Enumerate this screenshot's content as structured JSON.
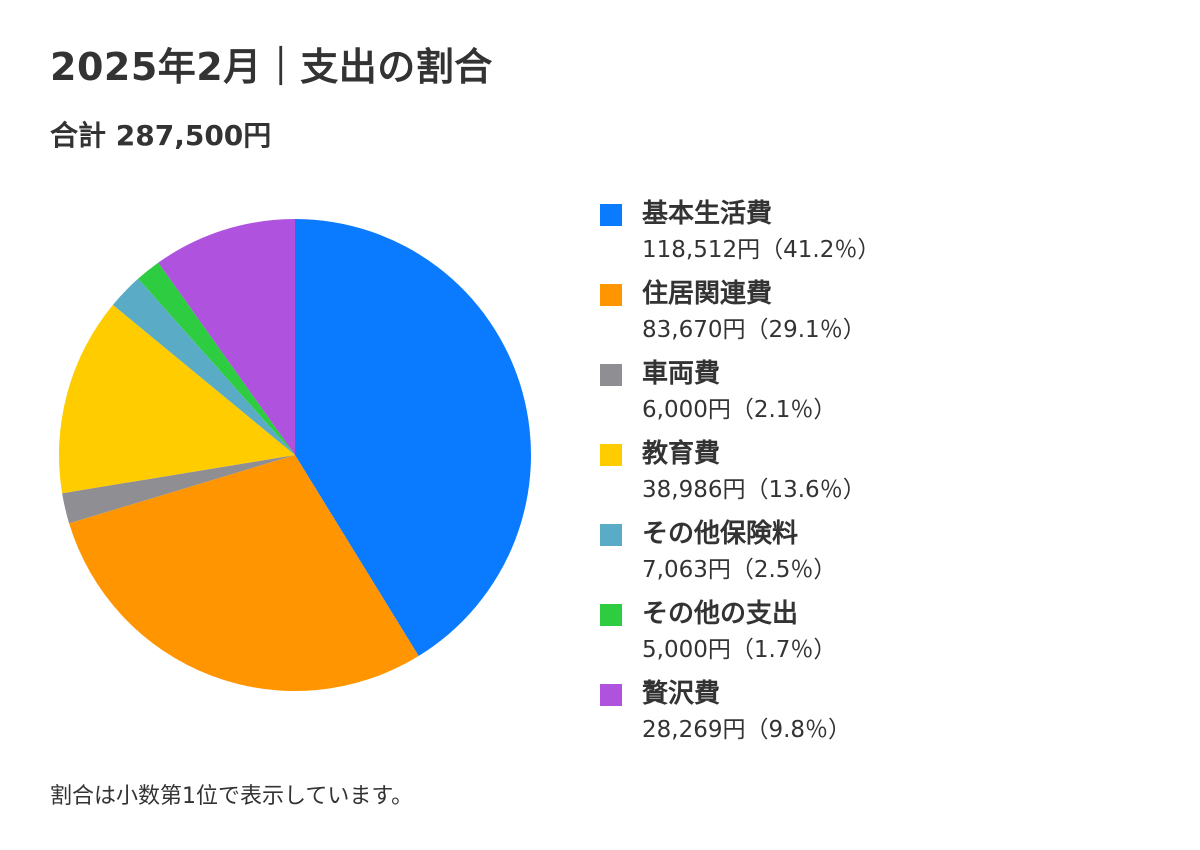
{
  "title": "2025年2月｜支出の割合",
  "subtitle": "合計 287,500円",
  "footnote": "割合は小数第1位で表示しています。",
  "chart_data": {
    "type": "pie",
    "total": 287500,
    "slices": [
      {
        "label": "基本生活費",
        "value": 118512,
        "percent": 41.2,
        "display": "118,512円（41.2％）",
        "color": "#0a7bff"
      },
      {
        "label": "住居関連費",
        "value": 83670,
        "percent": 29.1,
        "display": "83,670円（29.1％）",
        "color": "#ff9500"
      },
      {
        "label": "車両費",
        "value": 6000,
        "percent": 2.1,
        "display": "6,000円（2.1％）",
        "color": "#8e8e93"
      },
      {
        "label": "教育費",
        "value": 38986,
        "percent": 13.6,
        "display": "38,986円（13.6％）",
        "color": "#ffcc00"
      },
      {
        "label": "その他保険料",
        "value": 7063,
        "percent": 2.5,
        "display": "7,063円（2.5％）",
        "color": "#5aacc6"
      },
      {
        "label": "その他の支出",
        "value": 5000,
        "percent": 1.7,
        "display": "5,000円（1.7％）",
        "color": "#2ecc40"
      },
      {
        "label": "贅沢費",
        "value": 28269,
        "percent": 9.8,
        "display": "28,269円（9.8％）",
        "color": "#af52de"
      }
    ],
    "legend_position": "right"
  }
}
